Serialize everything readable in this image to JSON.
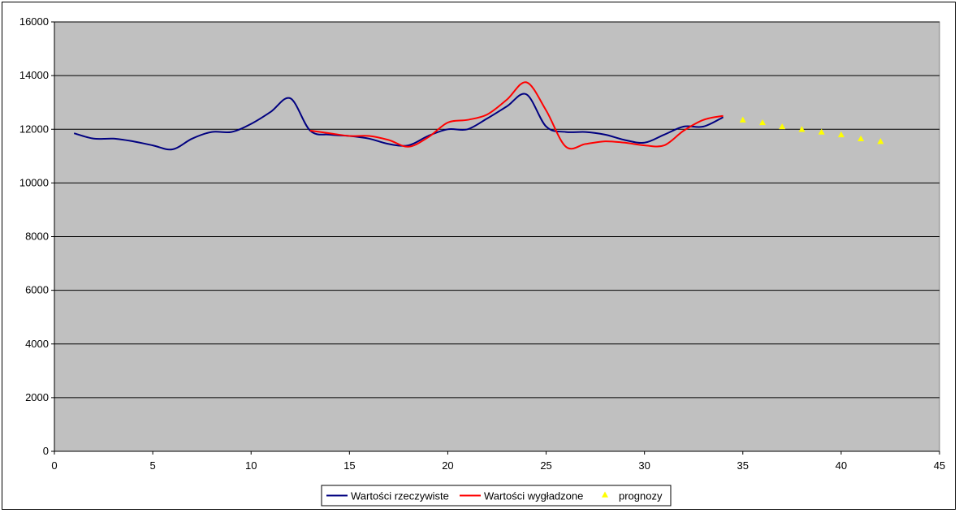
{
  "chart_data": {
    "type": "line",
    "title": "",
    "xlabel": "",
    "ylabel": "",
    "xlim": [
      0,
      45
    ],
    "ylim": [
      0,
      16000
    ],
    "x_ticks": [
      0,
      5,
      10,
      15,
      20,
      25,
      30,
      35,
      40,
      45
    ],
    "y_ticks": [
      0,
      2000,
      4000,
      6000,
      8000,
      10000,
      12000,
      14000,
      16000
    ],
    "grid": "horizontal",
    "legend_position": "bottom",
    "plot_background": "#c0c0c0",
    "series": [
      {
        "name": "Wartości rzeczywiste",
        "style": "line",
        "color": "#000080",
        "x": [
          1,
          2,
          3,
          4,
          5,
          6,
          7,
          8,
          9,
          10,
          11,
          12,
          13,
          14,
          15,
          16,
          17,
          18,
          19,
          20,
          21,
          22,
          23,
          24,
          25,
          26,
          27,
          28,
          29,
          30,
          31,
          32,
          33,
          34
        ],
        "y": [
          11850,
          11650,
          11650,
          11550,
          11400,
          11250,
          11650,
          11900,
          11900,
          12200,
          12650,
          13150,
          11950,
          11800,
          11750,
          11650,
          11450,
          11400,
          11750,
          12000,
          12000,
          12400,
          12850,
          13300,
          12100,
          11900,
          11900,
          11800,
          11600,
          11500,
          11800,
          12100,
          12100,
          12450
        ]
      },
      {
        "name": "Wartości wygładzone",
        "style": "line",
        "color": "#ff0000",
        "x": [
          13,
          14,
          15,
          16,
          17,
          18,
          19,
          20,
          21,
          22,
          23,
          24,
          25,
          26,
          27,
          28,
          29,
          30,
          31,
          32,
          33,
          34
        ],
        "y": [
          11950,
          11850,
          11750,
          11750,
          11600,
          11350,
          11700,
          12250,
          12350,
          12550,
          13100,
          13750,
          12700,
          11350,
          11450,
          11550,
          11500,
          11400,
          11400,
          11950,
          12350,
          12500
        ]
      },
      {
        "name": "prognozy",
        "style": "marker",
        "marker": "triangle",
        "color": "#ffff00",
        "x": [
          35,
          36,
          37,
          38,
          39,
          40,
          41,
          42
        ],
        "y": [
          12350,
          12250,
          12100,
          12000,
          11900,
          11800,
          11650,
          11550
        ]
      }
    ]
  }
}
